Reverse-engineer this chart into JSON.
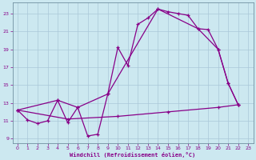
{
  "background_color": "#cce8f0",
  "grid_color": "#aac8d8",
  "line_color": "#880088",
  "xlabel": "Windchill (Refroidissement éolien,°C)",
  "xlim": [
    -0.5,
    23.5
  ],
  "ylim": [
    8.5,
    24.2
  ],
  "xticks": [
    0,
    1,
    2,
    3,
    4,
    5,
    6,
    7,
    8,
    9,
    10,
    11,
    12,
    13,
    14,
    15,
    16,
    17,
    18,
    19,
    20,
    21,
    22,
    23
  ],
  "yticks": [
    9,
    11,
    13,
    15,
    17,
    19,
    21,
    23
  ],
  "series1": [
    [
      0,
      12.2
    ],
    [
      1,
      11.1
    ],
    [
      2,
      10.7
    ],
    [
      3,
      11.0
    ],
    [
      4,
      13.3
    ],
    [
      5,
      10.8
    ],
    [
      6,
      12.5
    ],
    [
      7,
      9.3
    ],
    [
      8,
      9.5
    ],
    [
      9,
      14.0
    ],
    [
      10,
      19.2
    ],
    [
      11,
      17.2
    ],
    [
      12,
      21.8
    ],
    [
      13,
      22.5
    ],
    [
      14,
      23.5
    ],
    [
      15,
      23.2
    ],
    [
      16,
      23.0
    ],
    [
      17,
      22.8
    ],
    [
      18,
      21.3
    ],
    [
      19,
      21.2
    ],
    [
      20,
      19.0
    ],
    [
      21,
      15.2
    ],
    [
      22,
      12.8
    ]
  ],
  "series2": [
    [
      0,
      12.2
    ],
    [
      4,
      13.3
    ],
    [
      6,
      12.5
    ],
    [
      9,
      14.0
    ],
    [
      14,
      23.5
    ],
    [
      18,
      21.3
    ],
    [
      20,
      19.0
    ],
    [
      21,
      15.2
    ],
    [
      22,
      12.8
    ]
  ],
  "series3": [
    [
      0,
      12.2
    ],
    [
      5,
      11.2
    ],
    [
      10,
      11.5
    ],
    [
      15,
      12.0
    ],
    [
      20,
      12.5
    ],
    [
      22,
      12.8
    ]
  ]
}
